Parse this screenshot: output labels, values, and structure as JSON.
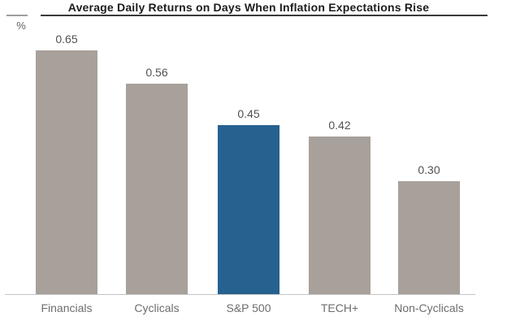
{
  "colors": {
    "bar_default": "#a8a09a",
    "bar_highlight": "#26618f",
    "axis_line": "#c6c4c2",
    "title_text": "#1c1c1c",
    "value_text": "#515151",
    "category_text": "#6d6d6d"
  },
  "chart_data": {
    "type": "bar",
    "title": "Average Daily Returns on Days When Inflation Expectations Rise",
    "categories": [
      "Financials",
      "Cyclicals",
      "S&P 500",
      "TECH+",
      "Non-Cyclicals"
    ],
    "values": [
      0.65,
      0.56,
      0.45,
      0.42,
      0.3
    ],
    "value_labels": [
      "0.65",
      "0.56",
      "0.45",
      "0.42",
      "0.30"
    ],
    "xlabel": "",
    "ylabel": "%",
    "ylim": [
      0,
      0.7
    ],
    "grid": false,
    "legend": "none",
    "highlight_index": 2,
    "highlight_category": "S&P 500"
  }
}
